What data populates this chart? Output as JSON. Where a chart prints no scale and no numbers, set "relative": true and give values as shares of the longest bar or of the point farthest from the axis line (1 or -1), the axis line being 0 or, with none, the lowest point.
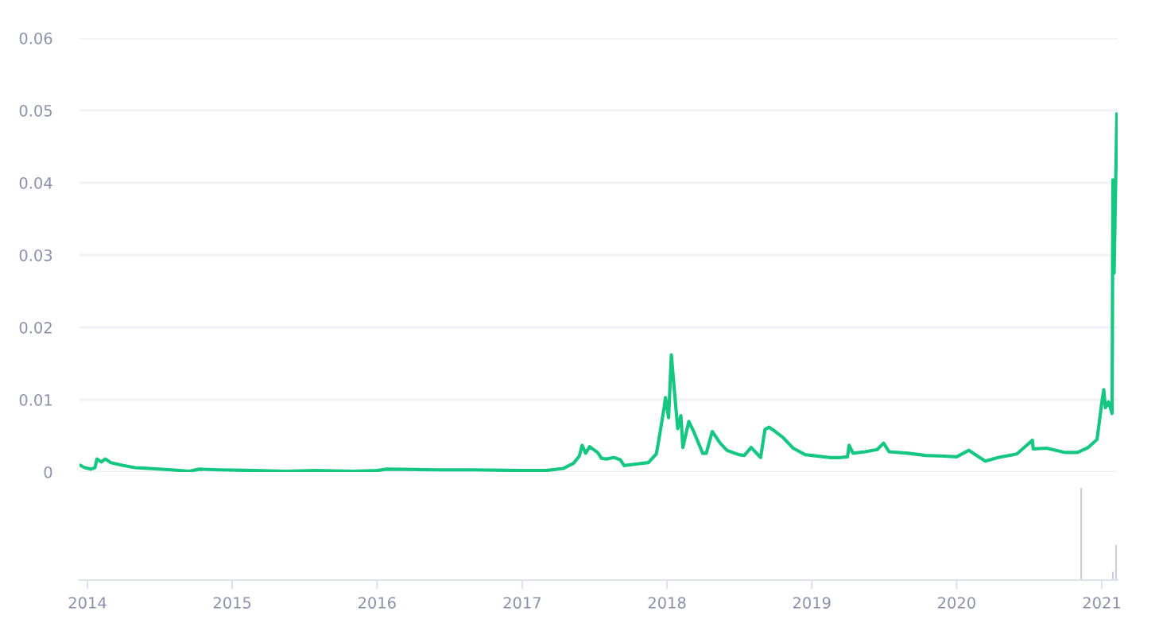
{
  "chart_data": [
    {
      "type": "line",
      "xlim": [
        "2013-12-12",
        "2021-02-10"
      ],
      "ylim": [
        0,
        0.06
      ],
      "yticks": [
        0,
        0.01,
        0.02,
        0.03,
        0.04,
        0.05,
        0.06
      ],
      "grid": "y",
      "tick_labels": "y",
      "legend": false,
      "series": [
        {
          "color": "#16c784",
          "x": [
            "2013-12-15",
            "2013-12-25",
            "2014-01-10",
            "2014-01-20",
            "2014-01-25",
            "2014-02-05",
            "2014-02-15",
            "2014-03-01",
            "2014-04-01",
            "2014-05-01",
            "2014-06-01",
            "2014-08-01",
            "2014-09-15",
            "2014-10-10",
            "2014-12-01",
            "2015-03-01",
            "2015-05-15",
            "2015-08-01",
            "2015-11-01",
            "2016-01-01",
            "2016-01-25",
            "2016-06-01",
            "2016-09-01",
            "2017-01-01",
            "2017-03-01",
            "2017-04-15",
            "2017-05-10",
            "2017-05-25",
            "2017-06-01",
            "2017-06-10",
            "2017-06-20",
            "2017-07-10",
            "2017-07-20",
            "2017-08-01",
            "2017-08-20",
            "2017-09-05",
            "2017-09-15",
            "2017-10-15",
            "2017-11-15",
            "2017-12-05",
            "2017-12-10",
            "2017-12-25",
            "2017-12-28",
            "2018-01-05",
            "2018-01-12",
            "2018-01-20",
            "2018-01-28",
            "2018-02-05",
            "2018-02-10",
            "2018-02-25",
            "2018-03-10",
            "2018-04-01",
            "2018-04-10",
            "2018-04-25",
            "2018-05-15",
            "2018-06-01",
            "2018-07-01",
            "2018-07-15",
            "2018-08-01",
            "2018-08-25",
            "2018-09-05",
            "2018-09-15",
            "2018-10-01",
            "2018-10-20",
            "2018-11-15",
            "2018-12-15",
            "2019-01-01",
            "2019-02-15",
            "2019-03-15",
            "2019-04-01",
            "2019-04-05",
            "2019-04-15",
            "2019-05-15",
            "2019-06-15",
            "2019-07-01",
            "2019-07-15",
            "2019-09-01",
            "2019-10-15",
            "2019-12-01",
            "2020-01-01",
            "2020-02-01",
            "2020-03-13",
            "2020-04-15",
            "2020-06-01",
            "2020-07-10",
            "2020-07-12",
            "2020-08-15",
            "2020-10-01",
            "2020-11-01",
            "2020-11-28",
            "2020-12-20",
            "2021-01-02",
            "2021-01-06",
            "2021-01-10",
            "2021-01-18",
            "2021-01-27",
            "2021-01-29",
            "2021-02-01",
            "2021-02-04",
            "2021-02-08"
          ],
          "values": [
            0.0009,
            0.0006,
            0.0004,
            0.0006,
            0.0018,
            0.0014,
            0.0018,
            0.0013,
            0.0009,
            0.0006,
            0.0005,
            0.0003,
            0.0001,
            0.0004,
            0.0003,
            0.0002,
            0.0001,
            0.0002,
            0.0001,
            0.0002,
            0.0004,
            0.0003,
            0.0003,
            0.0002,
            0.0002,
            0.0005,
            0.0012,
            0.0022,
            0.0037,
            0.0026,
            0.0035,
            0.0027,
            0.0019,
            0.0018,
            0.002,
            0.0017,
            0.0009,
            0.0011,
            0.0013,
            0.0025,
            0.004,
            0.009,
            0.0103,
            0.0075,
            0.0162,
            0.011,
            0.006,
            0.0078,
            0.0034,
            0.007,
            0.0055,
            0.0026,
            0.0026,
            0.0056,
            0.004,
            0.003,
            0.0024,
            0.0023,
            0.0034,
            0.002,
            0.0059,
            0.0062,
            0.0056,
            0.0048,
            0.0033,
            0.0024,
            0.0023,
            0.002,
            0.002,
            0.0021,
            0.0037,
            0.0026,
            0.0028,
            0.0031,
            0.004,
            0.0028,
            0.0026,
            0.0023,
            0.0022,
            0.0021,
            0.003,
            0.0015,
            0.002,
            0.0025,
            0.0044,
            0.0032,
            0.0033,
            0.0027,
            0.0027,
            0.0034,
            0.0045,
            0.01,
            0.0114,
            0.0089,
            0.0097,
            0.0081,
            0.0404,
            0.0275,
            0.037,
            0.0495
          ]
        }
      ]
    },
    {
      "type": "bar",
      "relative": true,
      "xlim": [
        "2013-12-12",
        "2021-02-10"
      ],
      "tick_labels": "x",
      "xticks": [
        {
          "value": "2014-01-01",
          "label": "2014"
        },
        {
          "value": "2015-01-01",
          "label": "2015"
        },
        {
          "value": "2016-01-01",
          "label": "2016"
        },
        {
          "value": "2017-01-01",
          "label": "2017"
        },
        {
          "value": "2018-01-01",
          "label": "2018"
        },
        {
          "value": "2019-01-01",
          "label": "2019"
        },
        {
          "value": "2020-01-01",
          "label": "2020"
        },
        {
          "value": "2021-01-01",
          "label": "2021"
        }
      ],
      "series": [
        {
          "color": "#c8cde0",
          "x": [
            "2020-11-10",
            "2021-01-29",
            "2021-02-06"
          ],
          "values": [
            1,
            0.09,
            0.38
          ]
        }
      ]
    }
  ]
}
